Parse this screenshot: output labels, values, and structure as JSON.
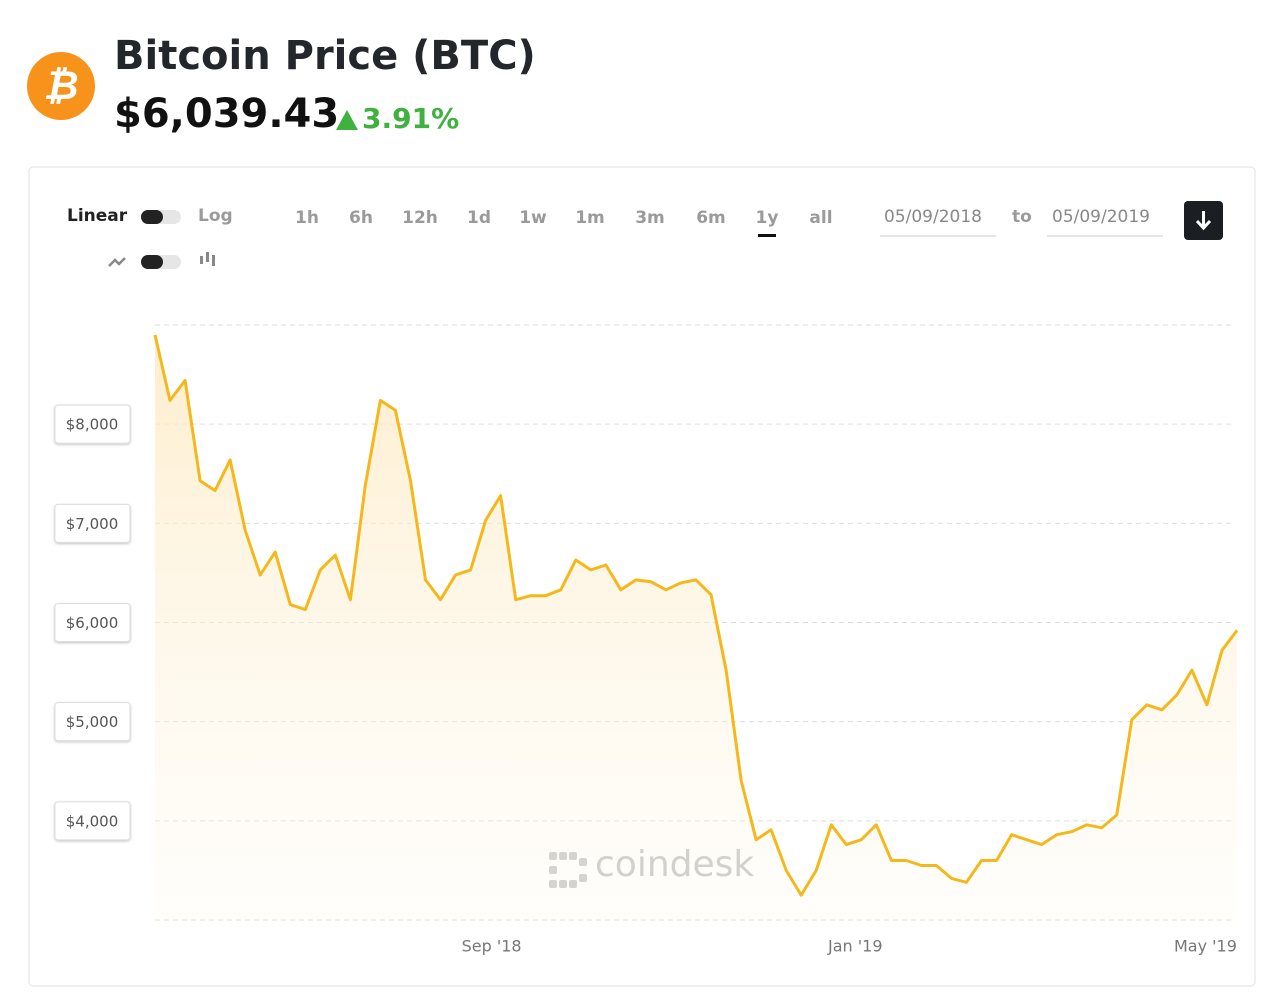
{
  "header": {
    "title": "Bitcoin Price (BTC)",
    "price": "$6,039.43",
    "change": "3.91%"
  },
  "controls": {
    "scale_options": [
      "Linear",
      "Log"
    ],
    "ranges": [
      "1h",
      "6h",
      "12h",
      "1d",
      "1w",
      "1m",
      "3m",
      "6m",
      "1y",
      "all"
    ],
    "active_range": "1y",
    "date_from": "05/09/2018",
    "date_separator": "to",
    "date_to": "05/09/2019"
  },
  "watermark": "coindesk",
  "chart_data": {
    "type": "line",
    "color": "#f5b81c",
    "values": [
      8900,
      8240,
      8440,
      7430,
      7330,
      7640,
      6930,
      6480,
      6710,
      6180,
      6130,
      6530,
      6680,
      6230,
      7390,
      8240,
      8140,
      7430,
      6430,
      6230,
      6480,
      6530,
      7030,
      7280,
      6230,
      6270,
      6270,
      6330,
      6630,
      6530,
      6580,
      6330,
      6430,
      6410,
      6330,
      6400,
      6430,
      6280,
      5520,
      4410,
      3810,
      3910,
      3500,
      3250,
      3500,
      3960,
      3760,
      3810,
      3960,
      3600,
      3600,
      3550,
      3550,
      3420,
      3380,
      3600,
      3600,
      3860,
      3810,
      3760,
      3860,
      3890,
      3960,
      3930,
      4060,
      5020,
      5170,
      5120,
      5270,
      5520,
      5170,
      5720,
      5920
    ],
    "xlim": [
      0,
      72
    ],
    "xticks": [
      {
        "value": 22.4,
        "label": "Sep '18"
      },
      {
        "value": 46.6,
        "label": "Jan '19"
      },
      {
        "value": 69.9,
        "label": "May '19"
      }
    ],
    "ylim": [
      3000,
      9000
    ],
    "yticks": [
      {
        "value": 4000,
        "label": "$4,000"
      },
      {
        "value": 5000,
        "label": "$5,000"
      },
      {
        "value": 6000,
        "label": "$6,000"
      },
      {
        "value": 7000,
        "label": "$7,000"
      },
      {
        "value": 8000,
        "label": "$8,000"
      }
    ],
    "grid": true
  }
}
